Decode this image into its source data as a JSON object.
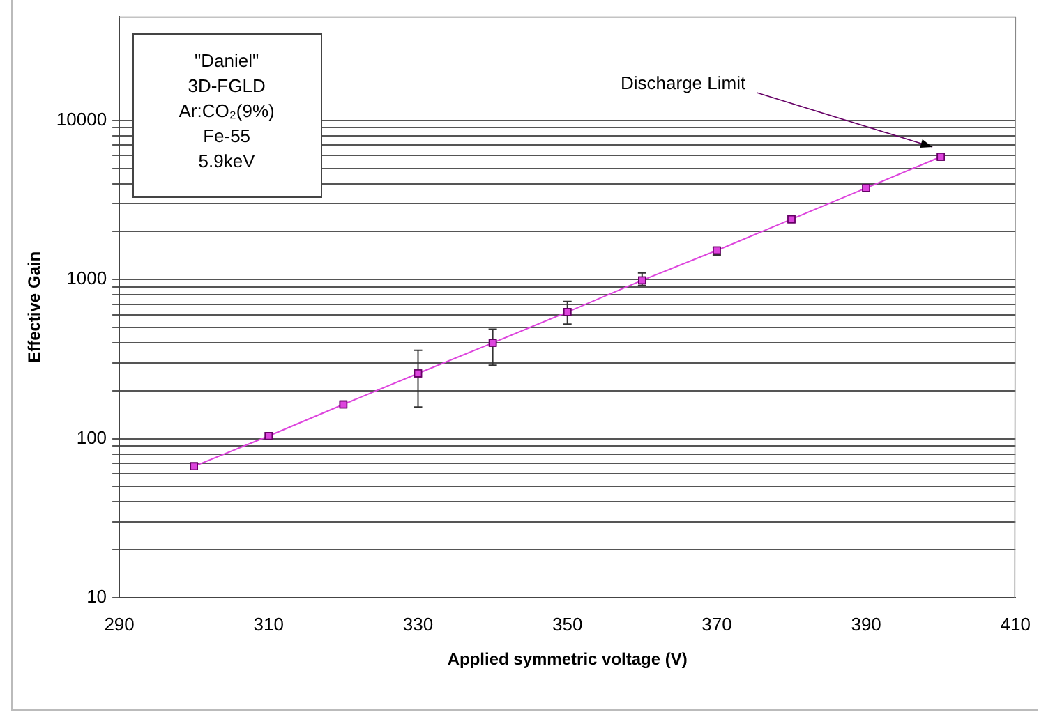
{
  "chart_data": {
    "type": "line",
    "xlabel": "Applied symmetric voltage (V)",
    "ylabel": "Effective Gain",
    "x": [
      300,
      310,
      320,
      330,
      340,
      350,
      360,
      370,
      380,
      390,
      400
    ],
    "values": [
      67,
      104,
      164,
      257,
      400,
      625,
      988,
      1523,
      2393,
      3758,
      5907
    ],
    "errors": [
      null,
      null,
      null,
      [
        158,
        359
      ],
      [
        289,
        487
      ],
      [
        524,
        727
      ],
      [
        914,
        1099
      ],
      [
        1427,
        1585
      ],
      null,
      null,
      null
    ],
    "color": "#dd44dd",
    "marker": "square",
    "xlim": [
      290,
      410
    ],
    "xticks": [
      290,
      310,
      330,
      350,
      370,
      390,
      410
    ],
    "ylim": [
      10,
      45000
    ],
    "log": true,
    "grid": "y",
    "yticks": [
      10,
      {
        "value": 20,
        "label": null
      },
      {
        "value": 30,
        "label": null
      },
      {
        "value": 40,
        "label": null
      },
      {
        "value": 50,
        "label": null
      },
      {
        "value": 60,
        "label": null
      },
      {
        "value": 70,
        "label": null
      },
      {
        "value": 80,
        "label": null
      },
      {
        "value": 90,
        "label": null
      },
      100,
      {
        "value": 200,
        "label": null
      },
      {
        "value": 300,
        "label": null
      },
      {
        "value": 400,
        "label": null
      },
      {
        "value": 500,
        "label": null
      },
      {
        "value": 600,
        "label": null
      },
      {
        "value": 700,
        "label": null
      },
      {
        "value": 800,
        "label": null
      },
      {
        "value": 900,
        "label": null
      },
      1000,
      {
        "value": 2000,
        "label": null
      },
      {
        "value": 3000,
        "label": null
      },
      {
        "value": 4000,
        "label": null
      },
      {
        "value": 5000,
        "label": null
      },
      {
        "value": 6000,
        "label": null
      },
      {
        "value": 7000,
        "label": null
      },
      {
        "value": 8000,
        "label": null
      },
      {
        "value": 9000,
        "label": null
      },
      10000
    ],
    "annotations": [
      "\"Daniel\"",
      "3D-FGLD",
      "Ar:CO₂(9%)",
      "Fe-55",
      "5.9keV",
      "Discharge Limit"
    ]
  }
}
